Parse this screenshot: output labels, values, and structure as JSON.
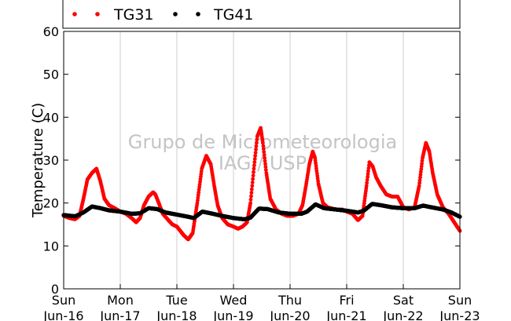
{
  "chart_data": {
    "type": "scatter",
    "title": "",
    "ylabel": "Temperature (C)",
    "xlabel": "",
    "ylim": [
      0,
      60
    ],
    "yticks": [
      0,
      10,
      20,
      30,
      40,
      50,
      60
    ],
    "xlim": [
      0,
      7
    ],
    "xticks": [
      {
        "pos": 0,
        "day": "Sun",
        "date": "Jun-16"
      },
      {
        "pos": 1,
        "day": "Mon",
        "date": "Jun-17"
      },
      {
        "pos": 2,
        "day": "Tue",
        "date": "Jun-18"
      },
      {
        "pos": 3,
        "day": "Wed",
        "date": "Jun-19"
      },
      {
        "pos": 4,
        "day": "Thu",
        "date": "Jun-20"
      },
      {
        "pos": 5,
        "day": "Fri",
        "date": "Jun-21"
      },
      {
        "pos": 6,
        "day": "Sat",
        "date": "Jun-22"
      },
      {
        "pos": 7,
        "day": "Sun",
        "date": "Jun-23"
      }
    ],
    "grid": "vertical",
    "legend_position": "top",
    "watermark": [
      "Grupo de Micrometeorologia",
      "IAG / USP"
    ],
    "series": [
      {
        "name": "TG31",
        "color": "#ff0000",
        "points": [
          [
            0.0,
            17.0
          ],
          [
            0.1,
            16.5
          ],
          [
            0.2,
            16.2
          ],
          [
            0.28,
            17.0
          ],
          [
            0.35,
            21.0
          ],
          [
            0.42,
            25.5
          ],
          [
            0.5,
            27.0
          ],
          [
            0.58,
            28.0
          ],
          [
            0.65,
            25.0
          ],
          [
            0.72,
            21.0
          ],
          [
            0.8,
            19.5
          ],
          [
            0.9,
            18.8
          ],
          [
            1.0,
            18.0
          ],
          [
            1.1,
            17.5
          ],
          [
            1.2,
            16.5
          ],
          [
            1.28,
            15.5
          ],
          [
            1.35,
            16.5
          ],
          [
            1.42,
            19.5
          ],
          [
            1.5,
            21.5
          ],
          [
            1.58,
            22.5
          ],
          [
            1.62,
            22.0
          ],
          [
            1.68,
            20.0
          ],
          [
            1.75,
            17.5
          ],
          [
            1.85,
            16.0
          ],
          [
            1.92,
            15.0
          ],
          [
            2.0,
            14.5
          ],
          [
            2.06,
            13.5
          ],
          [
            2.12,
            12.5
          ],
          [
            2.2,
            11.5
          ],
          [
            2.28,
            13.0
          ],
          [
            2.36,
            20.0
          ],
          [
            2.44,
            28.0
          ],
          [
            2.52,
            31.0
          ],
          [
            2.6,
            29.0
          ],
          [
            2.66,
            24.0
          ],
          [
            2.72,
            19.5
          ],
          [
            2.8,
            16.5
          ],
          [
            2.9,
            15.0
          ],
          [
            3.0,
            14.5
          ],
          [
            3.08,
            14.0
          ],
          [
            3.16,
            14.5
          ],
          [
            3.24,
            15.5
          ],
          [
            3.3,
            20.0
          ],
          [
            3.36,
            28.0
          ],
          [
            3.42,
            35.5
          ],
          [
            3.48,
            37.5
          ],
          [
            3.52,
            34.0
          ],
          [
            3.58,
            27.0
          ],
          [
            3.65,
            21.0
          ],
          [
            3.75,
            18.5
          ],
          [
            3.85,
            17.5
          ],
          [
            3.95,
            17.0
          ],
          [
            4.05,
            17.0
          ],
          [
            4.15,
            17.5
          ],
          [
            4.22,
            19.5
          ],
          [
            4.28,
            24.0
          ],
          [
            4.34,
            29.0
          ],
          [
            4.4,
            32.0
          ],
          [
            4.44,
            30.5
          ],
          [
            4.5,
            24.5
          ],
          [
            4.58,
            20.0
          ],
          [
            4.66,
            19.0
          ],
          [
            4.8,
            18.5
          ],
          [
            4.92,
            18.5
          ],
          [
            5.0,
            18.0
          ],
          [
            5.1,
            17.5
          ],
          [
            5.2,
            16.0
          ],
          [
            5.28,
            17.0
          ],
          [
            5.35,
            24.0
          ],
          [
            5.4,
            29.5
          ],
          [
            5.46,
            28.5
          ],
          [
            5.52,
            26.0
          ],
          [
            5.6,
            24.0
          ],
          [
            5.7,
            22.0
          ],
          [
            5.8,
            21.5
          ],
          [
            5.9,
            21.5
          ],
          [
            6.0,
            19.0
          ],
          [
            6.1,
            18.5
          ],
          [
            6.2,
            19.0
          ],
          [
            6.28,
            24.0
          ],
          [
            6.34,
            30.5
          ],
          [
            6.4,
            34.0
          ],
          [
            6.46,
            32.0
          ],
          [
            6.52,
            27.0
          ],
          [
            6.6,
            22.0
          ],
          [
            6.7,
            19.0
          ],
          [
            6.8,
            17.5
          ],
          [
            6.9,
            15.5
          ],
          [
            7.0,
            13.5
          ]
        ]
      },
      {
        "name": "TG41",
        "color": "#000000",
        "points": [
          [
            0.0,
            17.2
          ],
          [
            0.2,
            16.9
          ],
          [
            0.35,
            17.8
          ],
          [
            0.5,
            19.2
          ],
          [
            0.65,
            18.8
          ],
          [
            0.8,
            18.3
          ],
          [
            1.0,
            18.0
          ],
          [
            1.2,
            17.5
          ],
          [
            1.35,
            17.6
          ],
          [
            1.5,
            18.8
          ],
          [
            1.65,
            18.6
          ],
          [
            1.8,
            17.8
          ],
          [
            2.0,
            17.3
          ],
          [
            2.2,
            16.8
          ],
          [
            2.3,
            16.5
          ],
          [
            2.45,
            18.0
          ],
          [
            2.6,
            17.6
          ],
          [
            2.8,
            17.0
          ],
          [
            3.0,
            16.5
          ],
          [
            3.2,
            16.2
          ],
          [
            3.3,
            16.6
          ],
          [
            3.45,
            18.7
          ],
          [
            3.6,
            18.6
          ],
          [
            3.8,
            17.8
          ],
          [
            4.0,
            17.5
          ],
          [
            4.2,
            17.5
          ],
          [
            4.3,
            18.0
          ],
          [
            4.45,
            19.7
          ],
          [
            4.6,
            18.8
          ],
          [
            4.8,
            18.5
          ],
          [
            5.0,
            18.2
          ],
          [
            5.2,
            17.8
          ],
          [
            5.3,
            18.2
          ],
          [
            5.45,
            19.8
          ],
          [
            5.6,
            19.5
          ],
          [
            5.8,
            19.0
          ],
          [
            6.0,
            18.8
          ],
          [
            6.2,
            18.8
          ],
          [
            6.35,
            19.4
          ],
          [
            6.5,
            19.0
          ],
          [
            6.7,
            18.5
          ],
          [
            6.85,
            17.8
          ],
          [
            7.0,
            16.8
          ]
        ]
      }
    ]
  }
}
